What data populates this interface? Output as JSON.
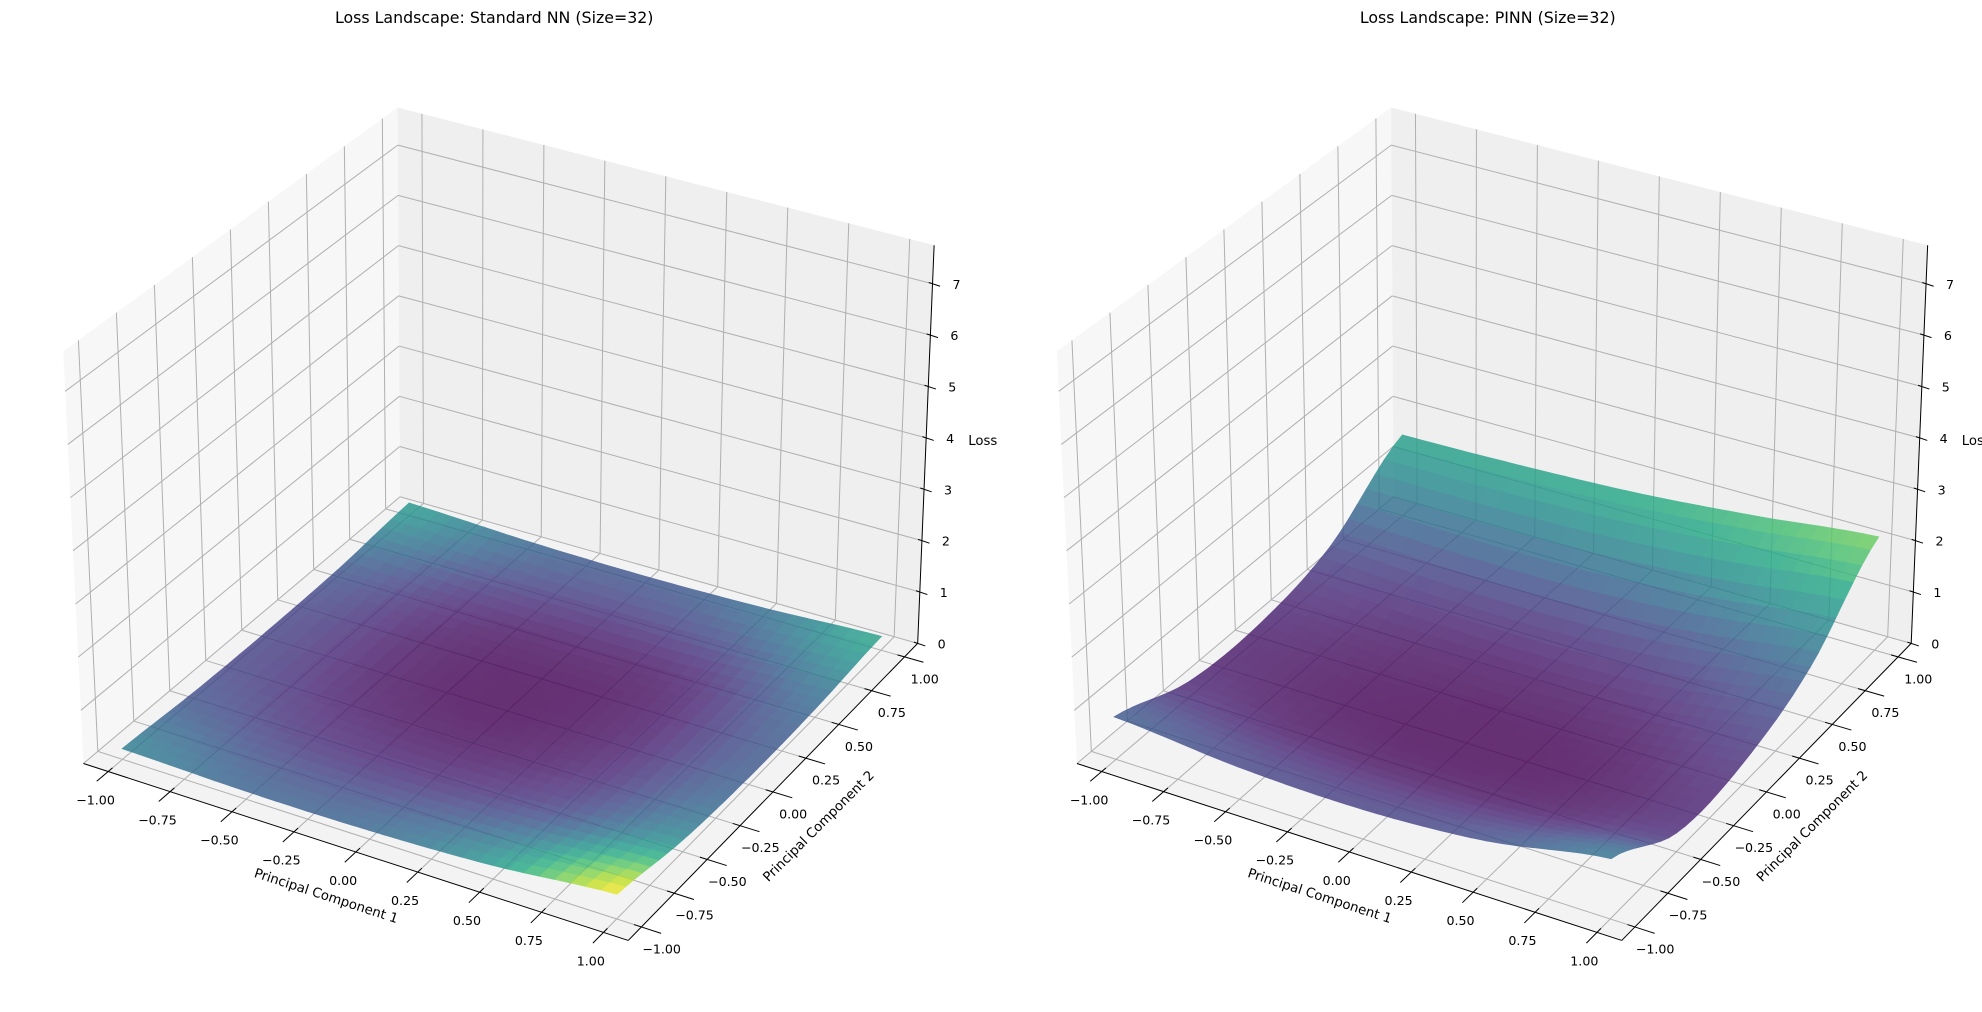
{
  "figure": {
    "background": "#ffffff",
    "pane_colors": {
      "side": "#f7f7f7",
      "back": "#efefef",
      "floor": "#f3f3f3"
    },
    "grid_color": "#b0b0b0"
  },
  "chart_data": [
    {
      "type": "surface",
      "title": "Loss Landscape: Standard NN (Size=32)",
      "xlabel": "Principal Component 1",
      "ylabel": "Principal Component 2",
      "zlabel": "Loss",
      "colormap": "viridis",
      "alpha": 0.8,
      "clim": [
        0.02,
        0.45
      ],
      "xlim": [
        -1.1,
        1.1
      ],
      "ylim": [
        -1.1,
        1.1
      ],
      "zlim": [
        0,
        7.75
      ],
      "grid": true,
      "x": [
        -1,
        -0.5,
        0,
        0.5,
        1
      ],
      "y": [
        -1,
        -0.5,
        0,
        0.5,
        1
      ],
      "z": [
        [
          0.2,
          0.15,
          0.16,
          0.25,
          0.45
        ],
        [
          0.12,
          0.07,
          0.06,
          0.1,
          0.22
        ],
        [
          0.1,
          0.04,
          0.02,
          0.05,
          0.14
        ],
        [
          0.13,
          0.06,
          0.04,
          0.06,
          0.16
        ],
        [
          0.25,
          0.16,
          0.13,
          0.17,
          0.27
        ]
      ],
      "xticks": [
        -1,
        -0.75,
        -0.5,
        -0.25,
        0,
        0.25,
        0.5,
        0.75,
        1
      ],
      "xtick_labels": [
        "−1.00",
        "−0.75",
        "−0.50",
        "−0.25",
        "0.00",
        "0.25",
        "0.50",
        "0.75",
        "1.00"
      ],
      "yticks": [
        -1,
        -0.75,
        -0.5,
        -0.25,
        0,
        0.25,
        0.5,
        0.75,
        1
      ],
      "ytick_labels": [
        "−1.00",
        "−0.75",
        "−0.50",
        "−0.25",
        "0.00",
        "0.25",
        "0.50",
        "0.75",
        "1.00"
      ],
      "zticks": [
        0,
        1,
        2,
        3,
        4,
        5,
        6,
        7
      ],
      "ztick_labels": [
        "0",
        "1",
        "2",
        "3",
        "4",
        "5",
        "6",
        "7"
      ]
    },
    {
      "type": "surface",
      "title": "Loss Landscape: PINN (Size=32)",
      "xlabel": "Principal Component 1",
      "ylabel": "Principal Component 2",
      "zlabel": "Loss",
      "colormap": "viridis",
      "alpha": 0.8,
      "clim": [
        0.05,
        2.8
      ],
      "xlim": [
        -1.1,
        1.1
      ],
      "ylim": [
        -1.1,
        1.1
      ],
      "zlim": [
        0,
        7.75
      ],
      "grid": true,
      "x": [
        -1,
        -0.5,
        0,
        0.5,
        1
      ],
      "y": [
        -1,
        -0.5,
        0,
        0.5,
        1
      ],
      "z": [
        [
          0.8,
          0.6,
          0.55,
          0.7,
          1.1
        ],
        [
          0.3,
          0.15,
          0.1,
          0.15,
          0.35
        ],
        [
          0.25,
          0.12,
          0.08,
          0.15,
          0.4
        ],
        [
          0.6,
          0.5,
          0.5,
          0.65,
          0.95
        ],
        [
          1.6,
          1.65,
          1.75,
          1.95,
          2.2
        ]
      ],
      "xticks": [
        -1,
        -0.75,
        -0.5,
        -0.25,
        0,
        0.25,
        0.5,
        0.75,
        1
      ],
      "xtick_labels": [
        "−1.00",
        "−0.75",
        "−0.50",
        "−0.25",
        "0.00",
        "0.25",
        "0.50",
        "0.75",
        "1.00"
      ],
      "yticks": [
        -1,
        -0.75,
        -0.5,
        -0.25,
        0,
        0.25,
        0.5,
        0.75,
        1
      ],
      "ytick_labels": [
        "−1.00",
        "−0.75",
        "−0.50",
        "−0.25",
        "0.00",
        "0.25",
        "0.50",
        "0.75",
        "1.00"
      ],
      "zticks": [
        0,
        1,
        2,
        3,
        4,
        5,
        6,
        7
      ],
      "ztick_labels": [
        "0",
        "1",
        "2",
        "3",
        "4",
        "5",
        "6",
        "7"
      ]
    }
  ]
}
